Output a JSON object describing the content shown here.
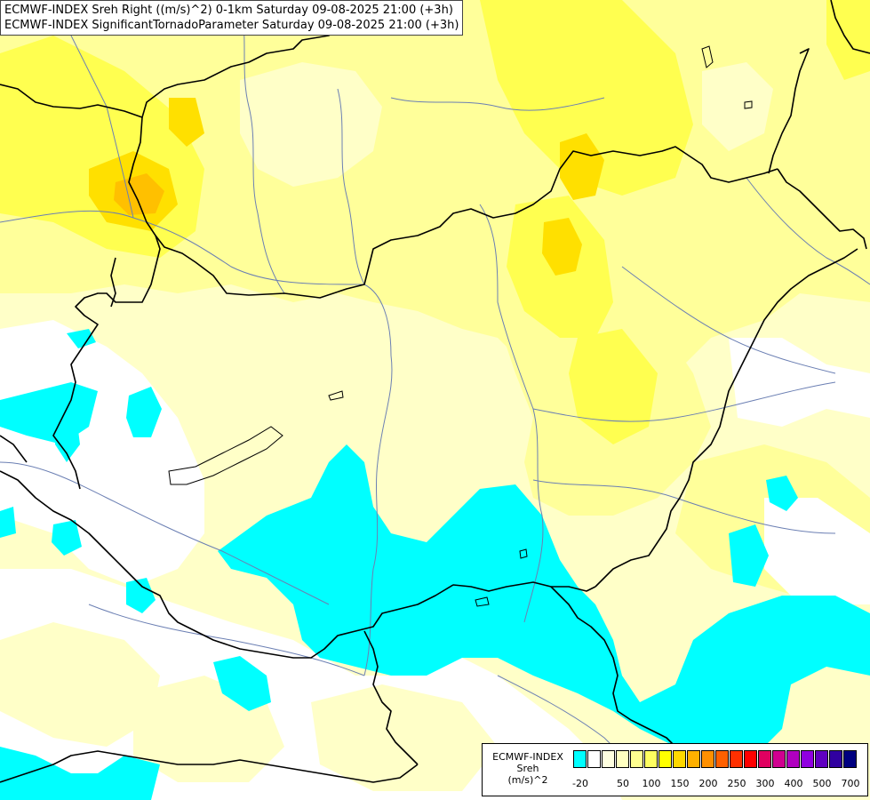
{
  "title": {
    "line1": "ECMWF-INDEX Sreh Right ((m/s)^2) 0-1km Saturday 09-08-2025 21:00 (+3h)",
    "line2": "ECMWF-INDEX SignificantTornadoParameter Saturday 09-08-2025 21:00 (+3h)"
  },
  "legend": {
    "line1": "ECMWF-INDEX",
    "line2": "Sreh",
    "line3": "(m/s)^2",
    "swatches": [
      "#00ffff",
      "#ffffff",
      "#ffffe0",
      "#ffffc0",
      "#ffff90",
      "#ffff60",
      "#ffff00",
      "#ffd800",
      "#ffb000",
      "#ff9000",
      "#ff6000",
      "#ff3000",
      "#ff0000",
      "#e00060",
      "#d00090",
      "#b000c0",
      "#9000e0",
      "#6000c0",
      "#3000a0",
      "#000080"
    ],
    "ticks": [
      "-20",
      "50",
      "100",
      "150",
      "200",
      "250",
      "300",
      "400",
      "500",
      "700"
    ]
  },
  "colors": {
    "cyan": "#00ffff",
    "white": "#ffffff",
    "pale_yellow": "#ffffc8",
    "light_yellow": "#ffff9a",
    "yellow": "#ffff50",
    "gold": "#ffe000",
    "orange": "#ffc000",
    "border": "#000000",
    "river": "#6b7fb3"
  }
}
